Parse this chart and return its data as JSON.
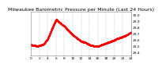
{
  "title": "Milwaukee Barometric Pressure per Minute (Last 24 Hours)",
  "title_fontsize": 4.5,
  "background_color": "#ffffff",
  "plot_bg_color": "#ffffff",
  "grid_color": "#bbbbbb",
  "line_color": "#ff0000",
  "tick_fontsize": 3.2,
  "ylim": [
    29.35,
    30.05
  ],
  "yticks": [
    29.4,
    29.5,
    29.6,
    29.7,
    29.8,
    29.9,
    30.0
  ],
  "num_points": 1440,
  "marker_size": 0.5,
  "keypoints_t": [
    0,
    1.5,
    3,
    4,
    5,
    6,
    7,
    8,
    9,
    10,
    11,
    12,
    13,
    14,
    15,
    16,
    17,
    18,
    19,
    20,
    21,
    22,
    23,
    24
  ],
  "keypoints_v": [
    29.52,
    29.5,
    29.53,
    29.62,
    29.78,
    29.93,
    29.87,
    29.82,
    29.75,
    29.68,
    29.63,
    29.58,
    29.56,
    29.52,
    29.5,
    29.5,
    29.52,
    29.55,
    29.57,
    29.6,
    29.63,
    29.65,
    29.68,
    29.72
  ]
}
